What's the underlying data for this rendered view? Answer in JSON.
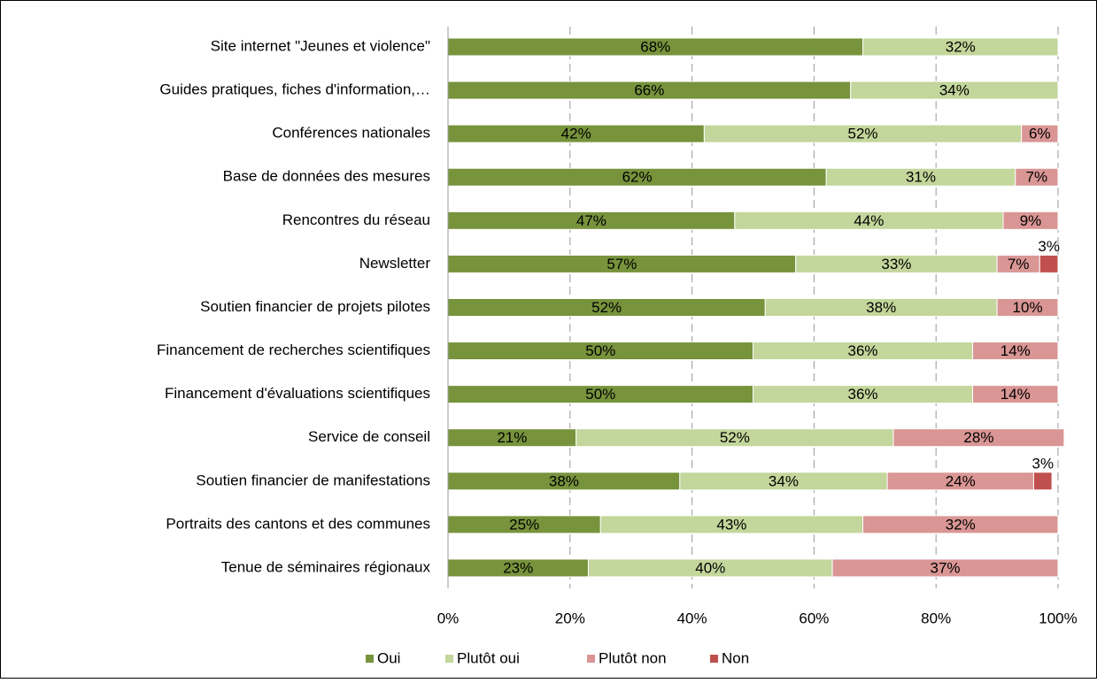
{
  "chart_data": {
    "type": "stacked_barh",
    "categories": [
      "Site internet \"Jeunes et violence\"",
      "Guides pratiques, fiches d'information,…",
      "Conférences nationales",
      "Base de données des mesures",
      "Rencontres du réseau",
      "Newsletter",
      "Soutien financier de projets pilotes",
      "Financement de recherches scientifiques",
      "Financement d'évaluations scientifiques",
      "Service de conseil",
      "Soutien financier de manifestations",
      "Portraits des cantons et des communes",
      "Tenue de séminaires régionaux"
    ],
    "series": [
      {
        "name": "Oui",
        "color": "#77933c",
        "values": [
          68,
          66,
          42,
          62,
          47,
          57,
          52,
          50,
          50,
          21,
          38,
          25,
          23
        ],
        "value_labels": [
          "68%",
          "66%",
          "42%",
          "62%",
          "47%",
          "57%",
          "52%",
          "50%",
          "50%",
          "21%",
          "38%",
          "25%",
          "23%"
        ]
      },
      {
        "name": "Plutôt oui",
        "color": "#c3d69b",
        "values": [
          32,
          34,
          52,
          31,
          44,
          33,
          38,
          36,
          36,
          52,
          34,
          43,
          40
        ],
        "value_labels": [
          "32%",
          "34%",
          "52%",
          "31%",
          "44%",
          "33%",
          "38%",
          "36%",
          "36%",
          "52%",
          "34%",
          "43%",
          "40%"
        ]
      },
      {
        "name": "Plutôt non",
        "color": "#d99694",
        "values": [
          null,
          null,
          6,
          7,
          9,
          7,
          10,
          14,
          14,
          28,
          24,
          32,
          37
        ],
        "value_labels": [
          null,
          null,
          "6%",
          "7%",
          "9%",
          "7%",
          "10%",
          "14%",
          "14%",
          "28%",
          "24%",
          "32%",
          "37%"
        ]
      },
      {
        "name": "Non",
        "color": "#c0504d",
        "values": [
          null,
          null,
          null,
          null,
          null,
          3,
          null,
          null,
          null,
          null,
          3,
          null,
          null
        ],
        "value_labels": [
          null,
          null,
          null,
          null,
          null,
          "3%",
          null,
          null,
          null,
          null,
          "3%",
          null,
          null
        ]
      }
    ],
    "xlim": [
      0,
      100
    ],
    "xticks": [
      {
        "value": 0,
        "label": "0%"
      },
      {
        "value": 20,
        "label": "20%"
      },
      {
        "value": 40,
        "label": "40%"
      },
      {
        "value": 60,
        "label": "60%"
      },
      {
        "value": 80,
        "label": "80%"
      },
      {
        "value": 100,
        "label": "100%"
      }
    ],
    "grid": true,
    "legend": "bottom"
  }
}
